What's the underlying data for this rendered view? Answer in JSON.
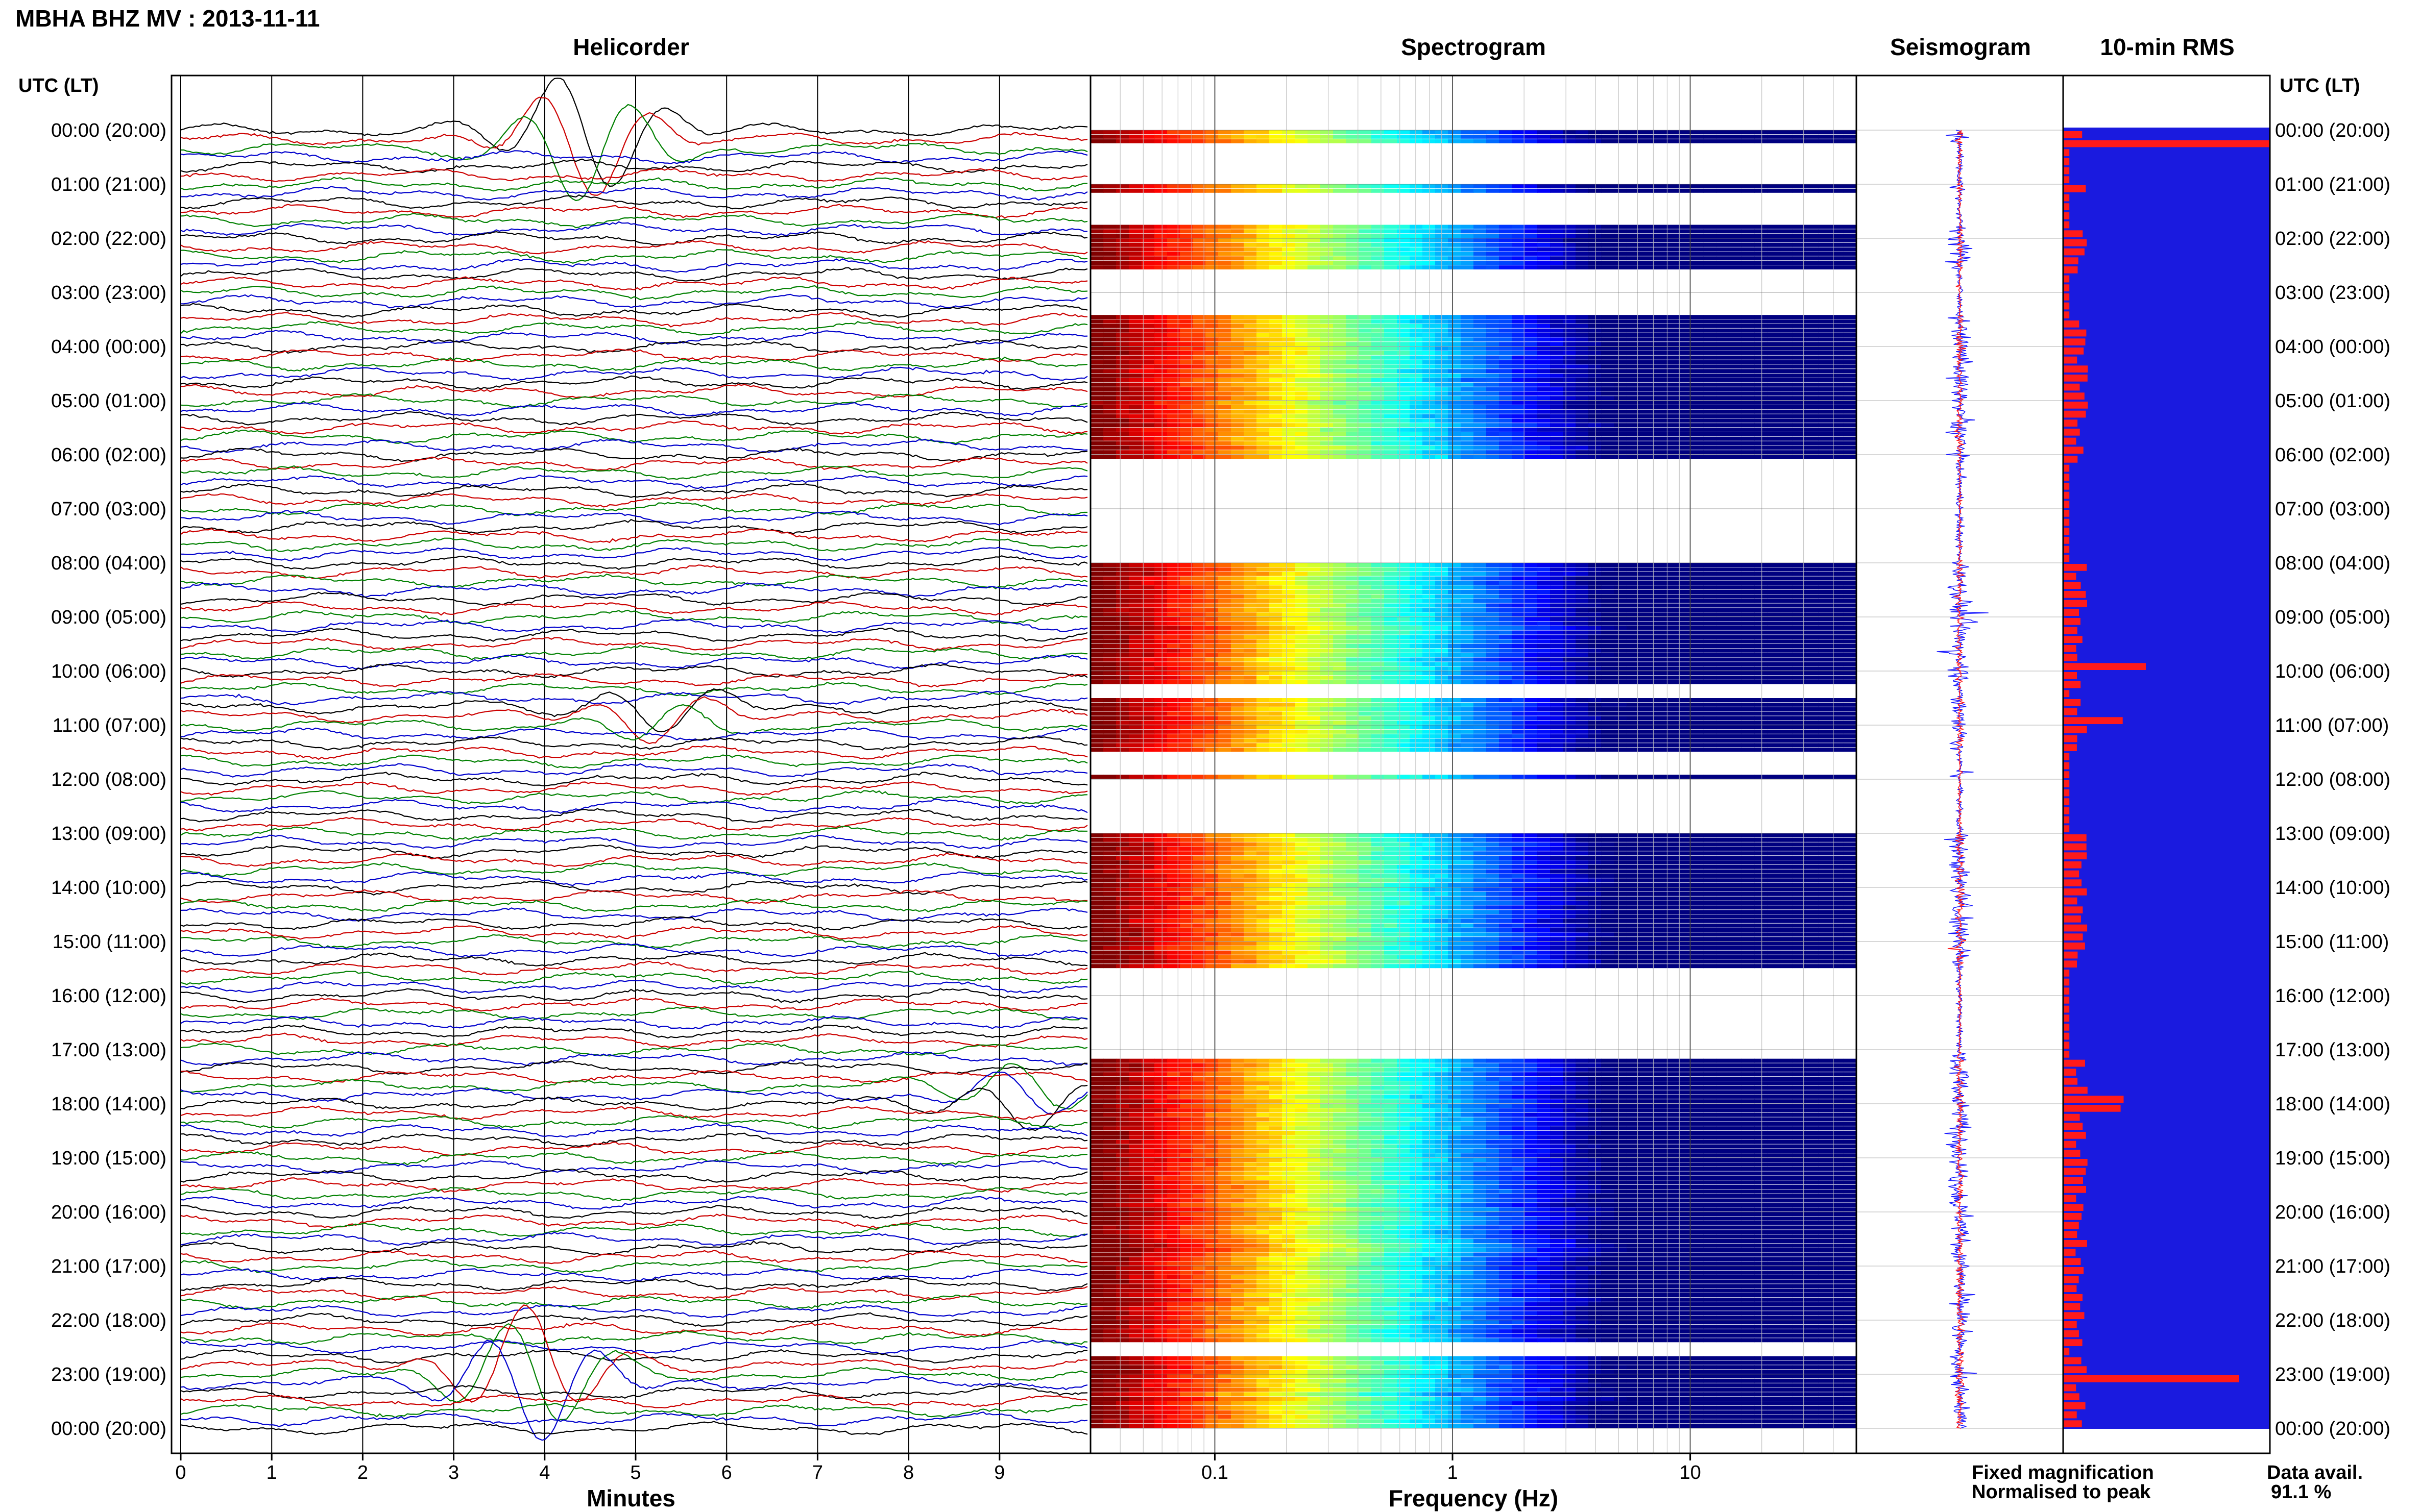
{
  "header": {
    "title": "MBHA BHZ MV : 2013-11-11",
    "utc_label_left": "UTC (LT)",
    "utc_label_right": "UTC (LT)"
  },
  "panels": {
    "helicorder": "Helicorder",
    "spectrogram": "Spectrogram",
    "seismogram": "Seismogram",
    "rms": "10-min RMS"
  },
  "time_labels": [
    "00:00 (20:00)",
    "01:00 (21:00)",
    "02:00 (22:00)",
    "03:00 (23:00)",
    "04:00 (00:00)",
    "05:00 (01:00)",
    "06:00 (02:00)",
    "07:00 (03:00)",
    "08:00 (04:00)",
    "09:00 (05:00)",
    "10:00 (06:00)",
    "11:00 (07:00)",
    "12:00 (08:00)",
    "13:00 (09:00)",
    "14:00 (10:00)",
    "15:00 (11:00)",
    "16:00 (12:00)",
    "17:00 (13:00)",
    "18:00 (14:00)",
    "19:00 (15:00)",
    "20:00 (16:00)",
    "21:00 (17:00)",
    "22:00 (18:00)",
    "23:00 (19:00)",
    "00:00 (20:00)"
  ],
  "footer": {
    "legend_fixed": "Fixed magnification",
    "legend_normalised": "Normalised to peak",
    "data_avail_label": "Data avail.",
    "data_avail_value": "91.1 %"
  },
  "colors": {
    "fixed": "#1a1aff",
    "normalised": "#ff1a1a",
    "rms_background": "#1a1adf",
    "rms_bar": "#ff1a1a",
    "spectrogram_low": "#00008b"
  },
  "chart_data": [
    {
      "type": "line",
      "title": "Helicorder",
      "xlabel": "Minutes",
      "xlim": [
        0,
        10
      ],
      "x_ticks": [
        "0",
        "1",
        "2",
        "3",
        "4",
        "5",
        "6",
        "7",
        "8",
        "9"
      ],
      "rows_per_hour": 6,
      "trace_colors": [
        "#000000",
        "#cc0000",
        "#008000",
        "#0000cc"
      ],
      "events": [
        {
          "hour": 0.1,
          "minute": 4.5,
          "amplitude": "large"
        },
        {
          "hour": 10.8,
          "minute": 5.3,
          "amplitude": "medium"
        },
        {
          "hour": 17.9,
          "minute": 9.3,
          "amplitude": "medium"
        },
        {
          "hour": 23.0,
          "minute": 3.9,
          "amplitude": "large"
        }
      ]
    },
    {
      "type": "heatmap",
      "title": "Spectrogram",
      "xlabel": "Frequency (Hz)",
      "x_scale": "log",
      "xlim": [
        0.03,
        50
      ],
      "x_ticks": [
        "0.1",
        "1",
        "10"
      ],
      "colormap": "jet",
      "gap_intervals_hours": [
        [
          0.25,
          1.0
        ],
        [
          1.1,
          1.75
        ],
        [
          2.55,
          3.4
        ],
        [
          6.05,
          8.0
        ],
        [
          10.2,
          10.5
        ],
        [
          11.45,
          11.85
        ],
        [
          12.0,
          13.0
        ],
        [
          15.5,
          17.1
        ],
        [
          22.4,
          22.6
        ]
      ]
    },
    {
      "type": "line",
      "title": "Seismogram",
      "series": [
        {
          "name": "Fixed magnification",
          "color": "#1a1aff"
        },
        {
          "name": "Normalised to peak",
          "color": "#ff1a1a"
        }
      ]
    },
    {
      "type": "bar",
      "title": "10-min RMS",
      "orientation": "horizontal",
      "rows": 144,
      "notable_peaks_hours": [
        0.2,
        9.9,
        10.9,
        17.8,
        18.0,
        23.0
      ],
      "data_availability_percent": 91.1
    }
  ]
}
